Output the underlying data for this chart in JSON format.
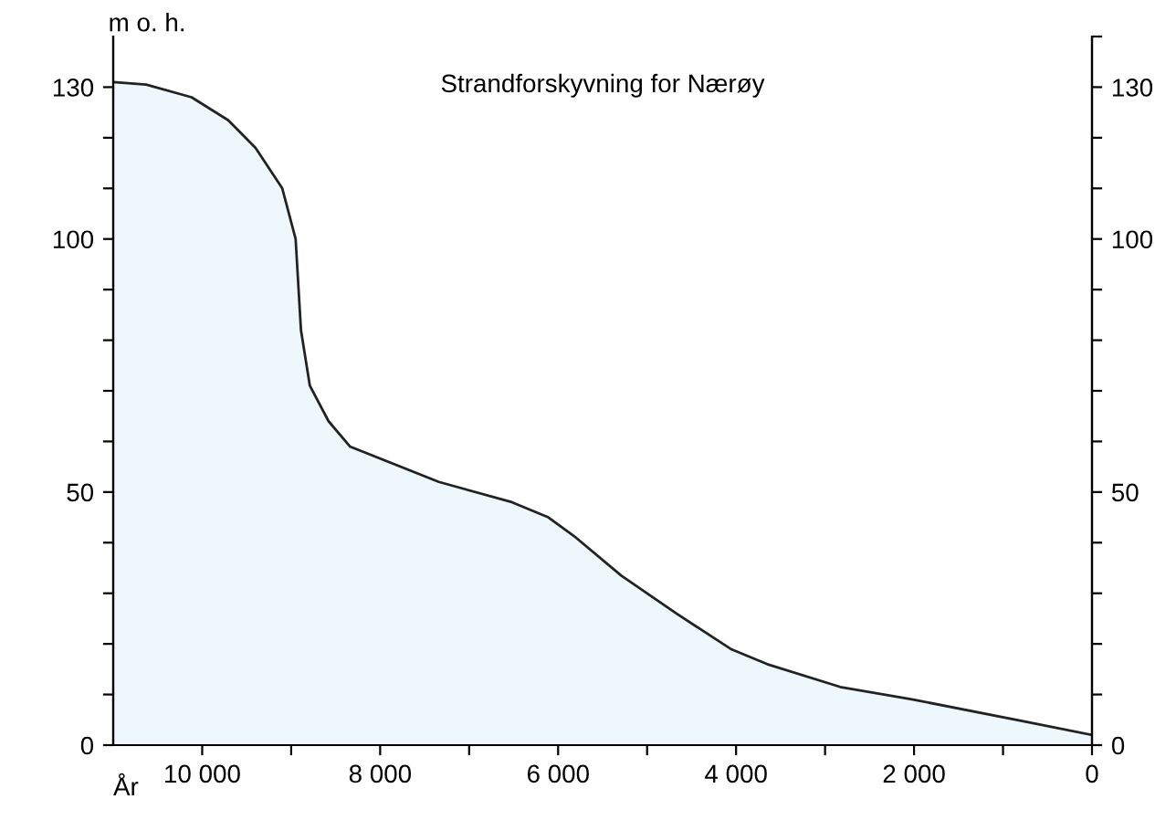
{
  "chart_data": {
    "type": "area",
    "title": "Strandforskyvning for Nærøy",
    "xlabel": "År",
    "ylabel": "m o. h.",
    "x": [
      11000,
      10630,
      10120,
      9710,
      9400,
      9100,
      8950,
      8890,
      8790,
      8580,
      8340,
      7340,
      6520,
      6110,
      5800,
      5290,
      4670,
      4060,
      3650,
      2830,
      2010,
      770,
      0
    ],
    "series": [
      {
        "color": "#eef8fc",
        "values": [
          131,
          130.5,
          128,
          123.5,
          118,
          110,
          100,
          82,
          71,
          64,
          59,
          52,
          48,
          45,
          41,
          33.5,
          26,
          19,
          16,
          11.5,
          9,
          4.7,
          2
        ]
      }
    ],
    "xlim": [
      11000,
      0
    ],
    "xticks": [
      {
        "value": 10000,
        "label": "10 000"
      },
      {
        "value": 9000,
        "label": null
      },
      {
        "value": 8000,
        "label": "8 000"
      },
      {
        "value": 7000,
        "label": null
      },
      {
        "value": 6000,
        "label": "6 000"
      },
      {
        "value": 5000,
        "label": null
      },
      {
        "value": 4000,
        "label": "4 000"
      },
      {
        "value": 3000,
        "label": null
      },
      {
        "value": 2000,
        "label": "2 000"
      },
      {
        "value": 1000,
        "label": null
      },
      0
    ],
    "ylim": [
      0,
      140
    ],
    "yticks": [
      0,
      {
        "value": 10,
        "label": null
      },
      {
        "value": 20,
        "label": null
      },
      {
        "value": 30,
        "label": null
      },
      {
        "value": 40,
        "label": null
      },
      50,
      {
        "value": 60,
        "label": null
      },
      {
        "value": 70,
        "label": null
      },
      {
        "value": 80,
        "label": null
      },
      {
        "value": 90,
        "label": null
      },
      100,
      {
        "value": 110,
        "label": null
      },
      {
        "value": 120,
        "label": null
      },
      130
    ],
    "y2lim": [
      0,
      140
    ],
    "y2ticks": [
      0,
      {
        "value": 10,
        "label": null
      },
      {
        "value": 20,
        "label": null
      },
      {
        "value": 30,
        "label": null
      },
      {
        "value": 40,
        "label": null
      },
      50,
      {
        "value": 60,
        "label": null
      },
      {
        "value": 70,
        "label": null
      },
      {
        "value": 80,
        "label": null
      },
      {
        "value": 90,
        "label": null
      },
      100,
      {
        "value": 110,
        "label": null
      },
      {
        "value": 120,
        "label": null
      },
      130,
      {
        "value": 140,
        "label": null
      }
    ],
    "grid": false,
    "legend": false
  }
}
